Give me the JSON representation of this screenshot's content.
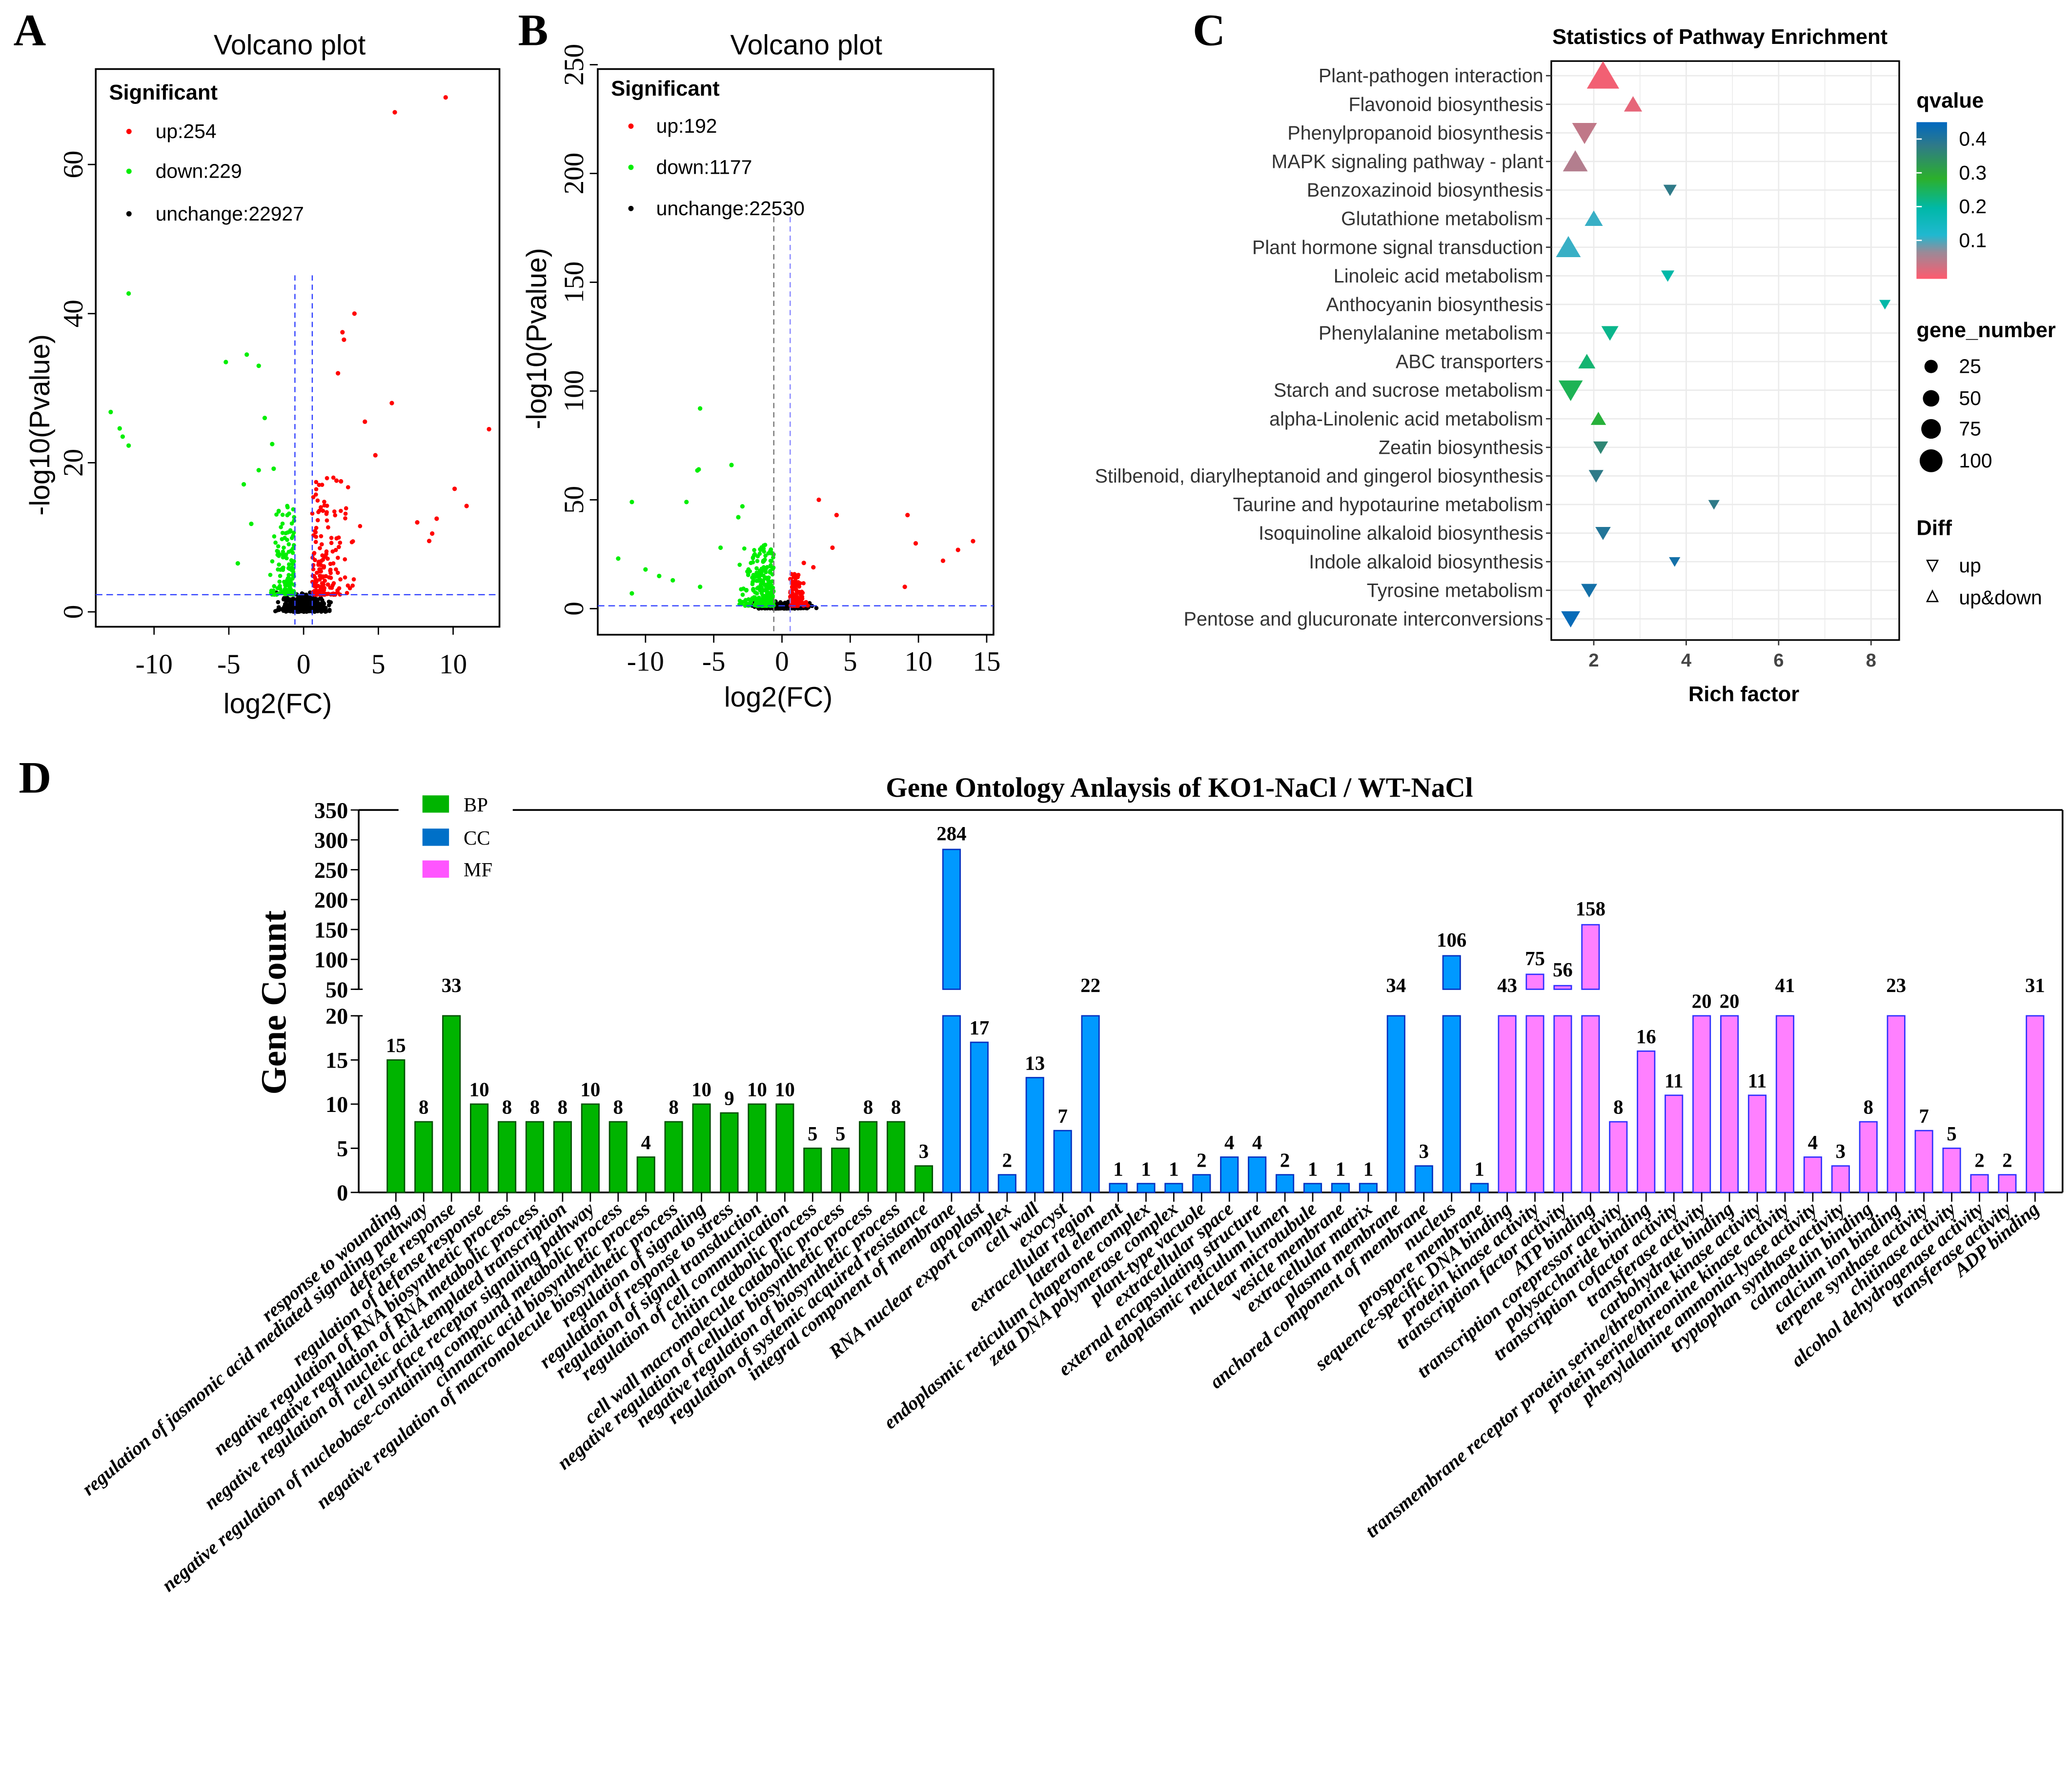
{
  "panel_letters": {
    "a": "A",
    "b": "B",
    "c": "C",
    "d": "D"
  },
  "chart_data": [
    {
      "id": "A",
      "type": "scatter",
      "title": "Volcano plot",
      "xlabel": "log2(FC)",
      "ylabel": "-log10(Pvalue)",
      "xlim": [
        -13.9,
        13.1
      ],
      "ylim": [
        -2,
        72.8
      ],
      "xticks": [
        "-10",
        "-5",
        "0",
        "5",
        "10"
      ],
      "xtick_values": [
        -10,
        -5,
        0,
        5,
        10
      ],
      "yticks": [
        "0",
        "20",
        "40",
        "60"
      ],
      "ytick_values": [
        0,
        20,
        40,
        60
      ],
      "thresholds": {
        "log2fc": 0.58,
        "neglog10p": 2.3
      },
      "legend": {
        "title": "Significant",
        "placement": "top-left",
        "entries": [
          {
            "label": "up:254",
            "color": "#ff0000"
          },
          {
            "label": "down:229",
            "color": "#00ee00"
          },
          {
            "label": "unchange:22927",
            "color": "#000000"
          }
        ]
      },
      "counts": {
        "up": 254,
        "down": 229,
        "unchange": 22927
      },
      "notable_points": {
        "up": [
          [
            9.5,
            69
          ],
          [
            6.1,
            67
          ],
          [
            3.4,
            40
          ],
          [
            2.6,
            37.5
          ],
          [
            2.7,
            36.5
          ],
          [
            2.3,
            32
          ],
          [
            5.9,
            28
          ],
          [
            4.1,
            25.5
          ],
          [
            12.4,
            24.5
          ],
          [
            4.8,
            21
          ],
          [
            10.1,
            16.5
          ],
          [
            10.9,
            14.2
          ],
          [
            7.6,
            12
          ],
          [
            8.9,
            12.5
          ],
          [
            8.6,
            10.5
          ],
          [
            8.4,
            9.5
          ],
          [
            2.2,
            17.6
          ],
          [
            2.5,
            17.5
          ]
        ],
        "down": [
          [
            -11.7,
            42.7
          ],
          [
            -3.8,
            34.5
          ],
          [
            -5.2,
            33.5
          ],
          [
            -3,
            33
          ],
          [
            -12.9,
            26.8
          ],
          [
            -12.3,
            24.6
          ],
          [
            -12.1,
            23.5
          ],
          [
            -11.7,
            22.3
          ],
          [
            -2.6,
            26
          ],
          [
            -2.1,
            22.5
          ],
          [
            -3,
            19
          ],
          [
            -2,
            19.2
          ],
          [
            -4,
            17.1
          ],
          [
            -3.5,
            11.8
          ],
          [
            -4.4,
            6.5
          ]
        ]
      }
    },
    {
      "id": "B",
      "type": "scatter",
      "title": "Volcano plot",
      "xlabel": "log2(FC)",
      "ylabel": "-log10(Pvalue)",
      "xlim": [
        -13.5,
        15.5
      ],
      "ylim": [
        -12,
        248
      ],
      "xticks": [
        "-10",
        "-5",
        "0",
        "5",
        "10",
        "15"
      ],
      "xtick_values": [
        -10,
        -5,
        0,
        5,
        10,
        15
      ],
      "yticks": [
        "0",
        "50",
        "100",
        "150",
        "200",
        "250"
      ],
      "ytick_values": [
        0,
        50,
        100,
        150,
        200,
        250
      ],
      "thresholds": {
        "log2fc": 0.6,
        "neglog10p": 1.3
      },
      "legend": {
        "title": "Significant",
        "placement": "top-left",
        "entries": [
          {
            "label": "up:192",
            "color": "#ff0000"
          },
          {
            "label": "down:1177",
            "color": "#00ee00"
          },
          {
            "label": "unchange:22530",
            "color": "#000000"
          }
        ]
      },
      "counts": {
        "up": 192,
        "down": 1177,
        "unchange": 22530
      },
      "notable_points": {
        "up": [
          [
            2.7,
            50
          ],
          [
            4,
            43
          ],
          [
            9.2,
            43
          ],
          [
            14,
            31
          ],
          [
            12.9,
            27
          ],
          [
            11.8,
            22
          ],
          [
            9.8,
            30
          ],
          [
            3.7,
            28
          ],
          [
            9,
            10
          ],
          [
            1.6,
            21
          ],
          [
            2.3,
            19
          ]
        ],
        "down": [
          [
            -6,
            92
          ],
          [
            -6.1,
            64
          ],
          [
            -6.2,
            63.5
          ],
          [
            -3.7,
            66
          ],
          [
            -11,
            49
          ],
          [
            -7,
            49
          ],
          [
            -2.9,
            47
          ],
          [
            -12,
            23
          ],
          [
            -10,
            18
          ],
          [
            -8,
            13
          ],
          [
            -9,
            15
          ],
          [
            -6,
            10
          ],
          [
            -11,
            7
          ],
          [
            -3.2,
            42
          ],
          [
            -4.5,
            28
          ]
        ]
      }
    },
    {
      "id": "C",
      "type": "scatter",
      "title": "Statistics of Pathway Enrichment",
      "xlabel": "Rich factor",
      "xlim": [
        1.08,
        8.6
      ],
      "xticks": [
        "2",
        "4",
        "6",
        "8"
      ],
      "xtick_values": [
        2,
        4,
        6,
        8
      ],
      "grid": true,
      "pathways": [
        {
          "name": "Plant-pathogen interaction",
          "rich": 2.2,
          "qvalue": 0.01,
          "gene_number": 60,
          "diff": "up&down"
        },
        {
          "name": "Flavonoid biosynthesis",
          "rich": 2.85,
          "qvalue": 0.02,
          "gene_number": 12,
          "diff": "up&down"
        },
        {
          "name": "Phenylpropanoid biosynthesis",
          "rich": 1.8,
          "qvalue": 0.05,
          "gene_number": 30,
          "diff": "up"
        },
        {
          "name": "MAPK signaling pathway - plant",
          "rich": 1.6,
          "qvalue": 0.06,
          "gene_number": 30,
          "diff": "up&down"
        },
        {
          "name": "Benzoxazinoid biosynthesis",
          "rich": 3.65,
          "qvalue": 0.38,
          "gene_number": 4,
          "diff": "up"
        },
        {
          "name": "Glutathione metabolism",
          "rich": 2.0,
          "qvalue": 0.12,
          "gene_number": 12,
          "diff": "up&down"
        },
        {
          "name": "Plant hormone signal transduction",
          "rich": 1.45,
          "qvalue": 0.12,
          "gene_number": 30,
          "diff": "up&down"
        },
        {
          "name": "Linoleic acid metabolism",
          "rich": 3.6,
          "qvalue": 0.2,
          "gene_number": 4,
          "diff": "up"
        },
        {
          "name": "Anthocyanin biosynthesis",
          "rich": 8.3,
          "qvalue": 0.2,
          "gene_number": 2,
          "diff": "up"
        },
        {
          "name": "Phenylalanine metabolism",
          "rich": 2.35,
          "qvalue": 0.22,
          "gene_number": 10,
          "diff": "up"
        },
        {
          "name": "ABC transporters",
          "rich": 1.85,
          "qvalue": 0.24,
          "gene_number": 10,
          "diff": "up&down"
        },
        {
          "name": "Starch and sucrose metabolism",
          "rich": 1.5,
          "qvalue": 0.26,
          "gene_number": 28,
          "diff": "up"
        },
        {
          "name": "alpha-Linolenic acid metabolism",
          "rich": 2.1,
          "qvalue": 0.28,
          "gene_number": 7,
          "diff": "up&down"
        },
        {
          "name": "Zeatin biosynthesis",
          "rich": 2.15,
          "qvalue": 0.36,
          "gene_number": 6,
          "diff": "up"
        },
        {
          "name": "Stilbenoid, diarylheptanoid and gingerol biosynthesis",
          "rich": 2.05,
          "qvalue": 0.38,
          "gene_number": 6,
          "diff": "up"
        },
        {
          "name": "Taurine and hypotaurine metabolism",
          "rich": 4.6,
          "qvalue": 0.38,
          "gene_number": 2,
          "diff": "up"
        },
        {
          "name": "Isoquinoline alkaloid biosynthesis",
          "rich": 2.2,
          "qvalue": 0.4,
          "gene_number": 7,
          "diff": "up"
        },
        {
          "name": "Indole alkaloid biosynthesis",
          "rich": 3.75,
          "qvalue": 0.42,
          "gene_number": 2,
          "diff": "up"
        },
        {
          "name": "Tyrosine metabolism",
          "rich": 1.9,
          "qvalue": 0.42,
          "gene_number": 8,
          "diff": "up"
        },
        {
          "name": "Pentose and glucuronate interconversions",
          "rich": 1.5,
          "qvalue": 0.44,
          "gene_number": 14,
          "diff": "up"
        }
      ],
      "legend_qvalue": {
        "title": "qvalue",
        "ticks": [
          "0.4",
          "0.3",
          "0.2",
          "0.1"
        ],
        "tick_values": [
          0.4,
          0.3,
          0.2,
          0.1
        ]
      },
      "legend_gene_number": {
        "title": "gene_number",
        "labels": [
          "25",
          "50",
          "75",
          "100"
        ],
        "values": [
          25,
          50,
          75,
          100
        ]
      },
      "legend_diff": {
        "title": "Diff",
        "labels": [
          "up",
          "up&down"
        ]
      }
    },
    {
      "id": "D",
      "type": "bar",
      "title": "Gene Ontology Anlaysis of KO1-NaCl / WT-NaCl",
      "ylabel": "Gene Count",
      "y_break": [
        20,
        50
      ],
      "yticks_lower": [
        "0",
        "5",
        "10",
        "15",
        "20"
      ],
      "ytick_values_lower": [
        0,
        5,
        10,
        15,
        20
      ],
      "yticks_upper": [
        "50",
        "100",
        "150",
        "200",
        "250",
        "300",
        "350"
      ],
      "ytick_values_upper": [
        50,
        100,
        150,
        200,
        250,
        300,
        350
      ],
      "legend": [
        {
          "label": "BP",
          "color": "#00b400"
        },
        {
          "label": "CC",
          "color": "#0099ff"
        },
        {
          "label": "MF",
          "color": "#ff80ff"
        }
      ],
      "categories": [
        "response to wounding",
        "regulation of jasmonic acid mediated signaling pathway",
        "defense response",
        "regulation of defense response",
        "negative regulation of RNA biosynthetic process",
        "negative regulation of RNA metabolic process",
        "negative regulation of nucleic acid-templated transcription",
        "cell surface receptor signaling pathway",
        "negative regulation of nucleobase-containing compound metabolic process",
        "cinnamic acid biosynthetic process",
        "negative regulation of macromolecule biosynthetic process",
        "regulation of signaling",
        "regulation of response to stress",
        "regulation of signal transduction",
        "regulation of cell communication",
        "chitin catabolic process",
        "cell wall macromolecule catabolic process",
        "negative regulation of cellular biosynthetic process",
        "negative regulation of biosynthetic process",
        "regulation of systemic acquired resistance",
        "integral component of membrane",
        "apoplast",
        "RNA nuclear export complex",
        "cell wall",
        "exocyst",
        "extracellular region",
        "lateral element",
        "endoplasmic reticulum chaperone complex",
        "zeta DNA polymerase complex",
        "plant-type vacuole",
        "extracellular space",
        "external encapsulating structure",
        "endoplasmic reticulum lumen",
        "nuclear microtubule",
        "vesicle membrane",
        "extracellular matrix",
        "plasma membrane",
        "anchored component of membrane",
        "nucleus",
        "prospore membrane",
        "sequence-specific DNA binding",
        "protein kinase activity",
        "transcription factor activity",
        "ATP binding",
        "transcription corepressor activity",
        "polysaccharide binding",
        "transcription cofactor activity",
        "transferase activity",
        "carbohydrate binding",
        "transmembrane receptor protein serine/threonine kinase activity",
        "protein serine/threonine kinase activity",
        "phenylalanine ammonia-lyase activity",
        "tryptophan synthase activity",
        "calmodulin binding",
        "calcium ion binding",
        "terpene synthase activity",
        "chitinase activity",
        "alcohol dehydrogenase activity",
        "transferase activity",
        "ADP binding"
      ],
      "groups": [
        "BP",
        "BP",
        "BP",
        "BP",
        "BP",
        "BP",
        "BP",
        "BP",
        "BP",
        "BP",
        "BP",
        "BP",
        "BP",
        "BP",
        "BP",
        "BP",
        "BP",
        "BP",
        "BP",
        "BP",
        "CC",
        "CC",
        "CC",
        "CC",
        "CC",
        "CC",
        "CC",
        "CC",
        "CC",
        "CC",
        "CC",
        "CC",
        "CC",
        "CC",
        "CC",
        "CC",
        "CC",
        "CC",
        "CC",
        "CC",
        "MF",
        "MF",
        "MF",
        "MF",
        "MF",
        "MF",
        "MF",
        "MF",
        "MF",
        "MF",
        "MF",
        "MF",
        "MF",
        "MF",
        "MF",
        "MF",
        "MF",
        "MF",
        "MF",
        "MF"
      ],
      "values": [
        15,
        8,
        33,
        10,
        8,
        8,
        8,
        10,
        8,
        4,
        8,
        10,
        9,
        10,
        10,
        5,
        5,
        8,
        8,
        3,
        284,
        17,
        2,
        13,
        7,
        22,
        1,
        1,
        1,
        2,
        4,
        4,
        2,
        1,
        1,
        1,
        34,
        3,
        106,
        1,
        43,
        75,
        56,
        158,
        8,
        16,
        11,
        20,
        20,
        11,
        41,
        4,
        3,
        8,
        23,
        7,
        5,
        2,
        2,
        31
      ]
    }
  ]
}
